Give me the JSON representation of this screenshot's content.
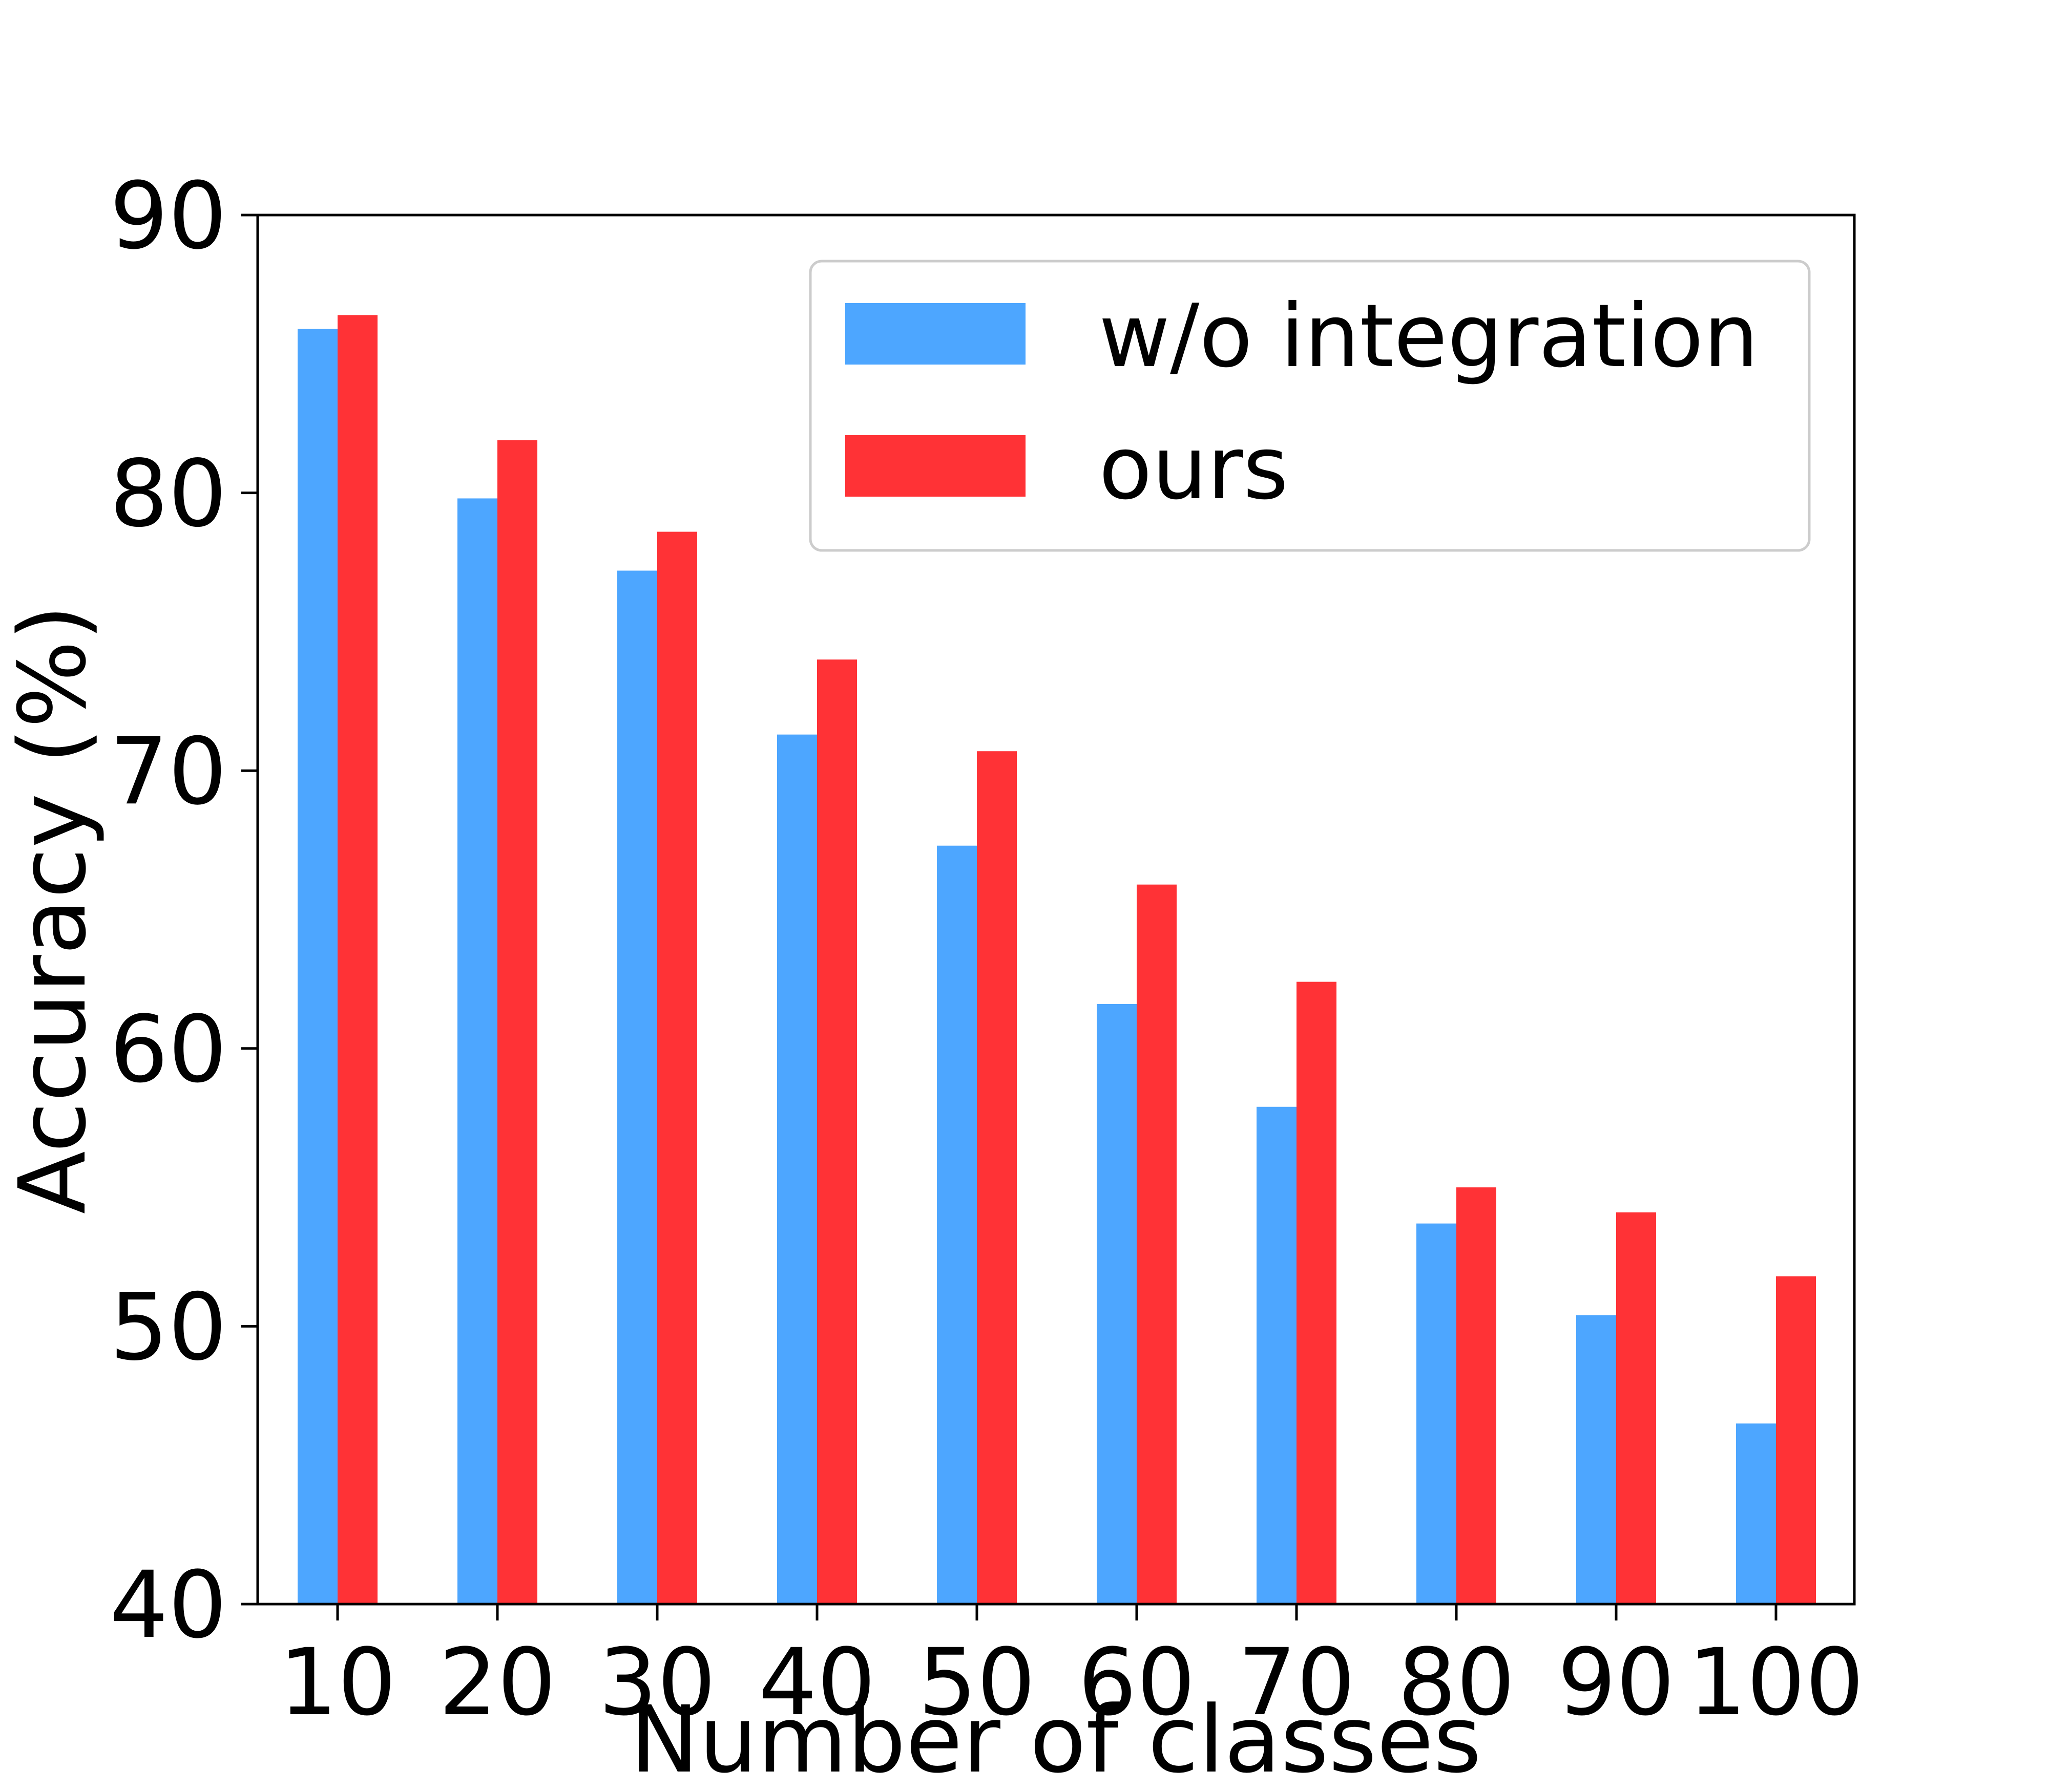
{
  "chart_data": {
    "type": "bar",
    "categories": [
      "10",
      "20",
      "30",
      "40",
      "50",
      "60",
      "70",
      "80",
      "90",
      "100"
    ],
    "series": [
      {
        "name": "w/o integration",
        "color": "#4DA6FF",
        "values": [
          85.9,
          79.8,
          77.2,
          71.3,
          67.3,
          61.6,
          57.9,
          53.7,
          50.4,
          46.5
        ]
      },
      {
        "name": "ours",
        "color": "#FF3236",
        "values": [
          86.4,
          81.9,
          78.6,
          74.0,
          70.7,
          65.9,
          62.4,
          55.0,
          54.1,
          51.8
        ]
      }
    ],
    "title": "",
    "xlabel": "Number of classes",
    "ylabel": "Accuracy (%)",
    "ylim": [
      40,
      90
    ],
    "yticks": [
      "40",
      "50",
      "60",
      "70",
      "80",
      "90"
    ],
    "grid": false,
    "legend_position": "top-right"
  }
}
